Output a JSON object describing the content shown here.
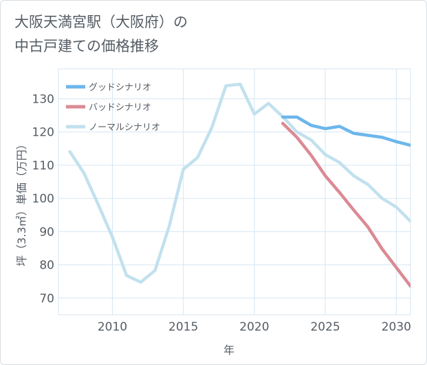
{
  "title": {
    "line1": "大阪天満宮駅（大阪府）の",
    "line2": "中古戸建ての価格推移"
  },
  "chart_data": {
    "type": "line",
    "xlabel": "年",
    "ylabel": "坪（3.3㎡）単価（万円）",
    "xlim": [
      2006.2,
      2031
    ],
    "ylim": [
      65,
      139
    ],
    "xticks": [
      2010,
      2015,
      2020,
      2025,
      2030
    ],
    "yticks": [
      70,
      80,
      90,
      100,
      110,
      120,
      130
    ],
    "grid": true,
    "legend_position": "top-left",
    "series": [
      {
        "name": "グッドシナリオ",
        "color": "#6cb6ec",
        "x": [
          2022,
          2023,
          2024,
          2025,
          2026,
          2027,
          2028,
          2029,
          2030,
          2031
        ],
        "values": [
          124.5,
          124.5,
          122,
          121,
          121.7,
          119.6,
          119,
          118.4,
          117.1,
          116
        ]
      },
      {
        "name": "バッドシナリオ",
        "color": "#db8a94",
        "x": [
          2022,
          2023,
          2024,
          2025,
          2026,
          2027,
          2028,
          2029,
          2030,
          2031
        ],
        "values": [
          122.6,
          118.4,
          113,
          106.8,
          101.8,
          96.5,
          91.4,
          84.8,
          79.2,
          73.6
        ]
      },
      {
        "name": "ノーマルシナリオ",
        "color": "#c2e1ee",
        "x": [
          2007,
          2008,
          2009,
          2010,
          2011,
          2012,
          2013,
          2014,
          2015,
          2016,
          2017,
          2018,
          2019,
          2020,
          2021,
          2022,
          2023,
          2024,
          2025,
          2026,
          2027,
          2028,
          2029,
          2030,
          2031
        ],
        "values": [
          114.1,
          107.6,
          98.2,
          88.4,
          76.8,
          74.8,
          78.3,
          91.6,
          108.8,
          112.3,
          121.3,
          133.9,
          134.4,
          125.4,
          128.6,
          124.6,
          120,
          117.6,
          113.2,
          110.8,
          106.8,
          104.2,
          100,
          97.4,
          93.1
        ]
      }
    ]
  }
}
